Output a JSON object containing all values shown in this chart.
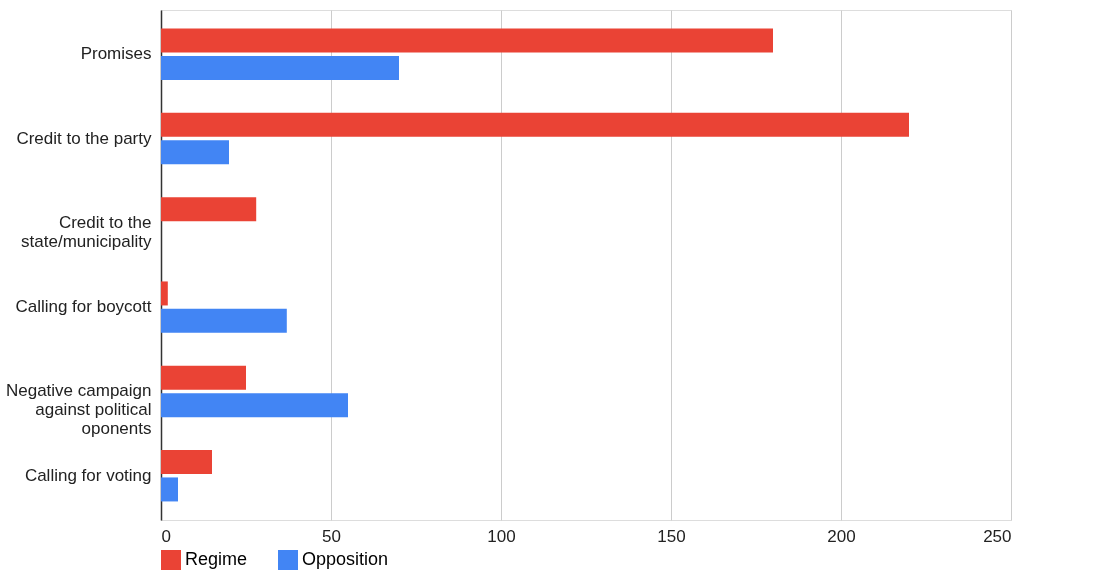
{
  "chart_data": {
    "type": "bar",
    "orientation": "horizontal",
    "categories": [
      "Promises",
      "Credit to the party",
      "Credit to the state/municipality",
      "Calling for boycott",
      "Negative campaign against political oponents",
      "Calling for voting"
    ],
    "series": [
      {
        "name": "Regime",
        "color": "#ea4335",
        "values": [
          180,
          220,
          28,
          2,
          25,
          15
        ]
      },
      {
        "name": "Opposition",
        "color": "#4285f4",
        "values": [
          70,
          20,
          0,
          37,
          55,
          5
        ]
      }
    ],
    "xlim": [
      0,
      250
    ],
    "xticks": [
      0,
      50,
      100,
      150,
      200,
      250
    ],
    "grid": "x",
    "legend": "bottom"
  }
}
